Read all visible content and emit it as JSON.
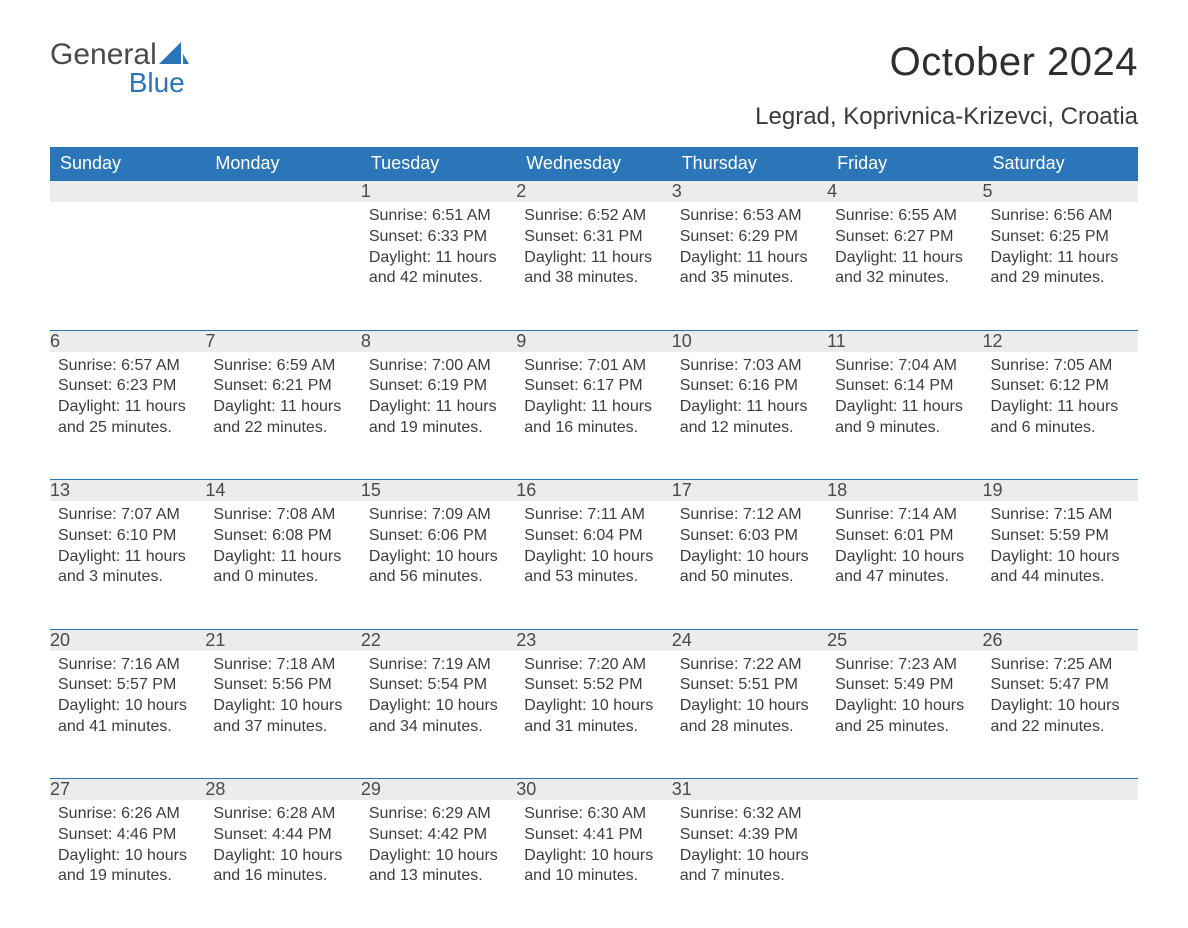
{
  "logo": {
    "line1": "General",
    "line2": "Blue",
    "sail_color": "#2b76b8"
  },
  "title": "October 2024",
  "location": "Legrad, Koprivnica-Krizevci, Croatia",
  "colors": {
    "header_bg": "#2b76b8",
    "header_text": "#ffffff",
    "daynum_bg": "#ececec",
    "daynum_border": "#2b76b8",
    "body_text": "#3d3d3d",
    "title_text": "#2f2f2f",
    "page_bg": "#ffffff"
  },
  "fonts": {
    "base_family": "Segoe UI",
    "title_size_pt": 30,
    "location_size_pt": 18,
    "header_size_pt": 13.5,
    "cell_size_pt": 12
  },
  "weekdays": [
    "Sunday",
    "Monday",
    "Tuesday",
    "Wednesday",
    "Thursday",
    "Friday",
    "Saturday"
  ],
  "labels": {
    "sunrise": "Sunrise",
    "sunset": "Sunset",
    "daylight": "Daylight"
  },
  "weeks": [
    [
      null,
      null,
      {
        "n": "1",
        "sunrise": "6:51 AM",
        "sunset": "6:33 PM",
        "daylight": "11 hours and 42 minutes."
      },
      {
        "n": "2",
        "sunrise": "6:52 AM",
        "sunset": "6:31 PM",
        "daylight": "11 hours and 38 minutes."
      },
      {
        "n": "3",
        "sunrise": "6:53 AM",
        "sunset": "6:29 PM",
        "daylight": "11 hours and 35 minutes."
      },
      {
        "n": "4",
        "sunrise": "6:55 AM",
        "sunset": "6:27 PM",
        "daylight": "11 hours and 32 minutes."
      },
      {
        "n": "5",
        "sunrise": "6:56 AM",
        "sunset": "6:25 PM",
        "daylight": "11 hours and 29 minutes."
      }
    ],
    [
      {
        "n": "6",
        "sunrise": "6:57 AM",
        "sunset": "6:23 PM",
        "daylight": "11 hours and 25 minutes."
      },
      {
        "n": "7",
        "sunrise": "6:59 AM",
        "sunset": "6:21 PM",
        "daylight": "11 hours and 22 minutes."
      },
      {
        "n": "8",
        "sunrise": "7:00 AM",
        "sunset": "6:19 PM",
        "daylight": "11 hours and 19 minutes."
      },
      {
        "n": "9",
        "sunrise": "7:01 AM",
        "sunset": "6:17 PM",
        "daylight": "11 hours and 16 minutes."
      },
      {
        "n": "10",
        "sunrise": "7:03 AM",
        "sunset": "6:16 PM",
        "daylight": "11 hours and 12 minutes."
      },
      {
        "n": "11",
        "sunrise": "7:04 AM",
        "sunset": "6:14 PM",
        "daylight": "11 hours and 9 minutes."
      },
      {
        "n": "12",
        "sunrise": "7:05 AM",
        "sunset": "6:12 PM",
        "daylight": "11 hours and 6 minutes."
      }
    ],
    [
      {
        "n": "13",
        "sunrise": "7:07 AM",
        "sunset": "6:10 PM",
        "daylight": "11 hours and 3 minutes."
      },
      {
        "n": "14",
        "sunrise": "7:08 AM",
        "sunset": "6:08 PM",
        "daylight": "11 hours and 0 minutes."
      },
      {
        "n": "15",
        "sunrise": "7:09 AM",
        "sunset": "6:06 PM",
        "daylight": "10 hours and 56 minutes."
      },
      {
        "n": "16",
        "sunrise": "7:11 AM",
        "sunset": "6:04 PM",
        "daylight": "10 hours and 53 minutes."
      },
      {
        "n": "17",
        "sunrise": "7:12 AM",
        "sunset": "6:03 PM",
        "daylight": "10 hours and 50 minutes."
      },
      {
        "n": "18",
        "sunrise": "7:14 AM",
        "sunset": "6:01 PM",
        "daylight": "10 hours and 47 minutes."
      },
      {
        "n": "19",
        "sunrise": "7:15 AM",
        "sunset": "5:59 PM",
        "daylight": "10 hours and 44 minutes."
      }
    ],
    [
      {
        "n": "20",
        "sunrise": "7:16 AM",
        "sunset": "5:57 PM",
        "daylight": "10 hours and 41 minutes."
      },
      {
        "n": "21",
        "sunrise": "7:18 AM",
        "sunset": "5:56 PM",
        "daylight": "10 hours and 37 minutes."
      },
      {
        "n": "22",
        "sunrise": "7:19 AM",
        "sunset": "5:54 PM",
        "daylight": "10 hours and 34 minutes."
      },
      {
        "n": "23",
        "sunrise": "7:20 AM",
        "sunset": "5:52 PM",
        "daylight": "10 hours and 31 minutes."
      },
      {
        "n": "24",
        "sunrise": "7:22 AM",
        "sunset": "5:51 PM",
        "daylight": "10 hours and 28 minutes."
      },
      {
        "n": "25",
        "sunrise": "7:23 AM",
        "sunset": "5:49 PM",
        "daylight": "10 hours and 25 minutes."
      },
      {
        "n": "26",
        "sunrise": "7:25 AM",
        "sunset": "5:47 PM",
        "daylight": "10 hours and 22 minutes."
      }
    ],
    [
      {
        "n": "27",
        "sunrise": "6:26 AM",
        "sunset": "4:46 PM",
        "daylight": "10 hours and 19 minutes."
      },
      {
        "n": "28",
        "sunrise": "6:28 AM",
        "sunset": "4:44 PM",
        "daylight": "10 hours and 16 minutes."
      },
      {
        "n": "29",
        "sunrise": "6:29 AM",
        "sunset": "4:42 PM",
        "daylight": "10 hours and 13 minutes."
      },
      {
        "n": "30",
        "sunrise": "6:30 AM",
        "sunset": "4:41 PM",
        "daylight": "10 hours and 10 minutes."
      },
      {
        "n": "31",
        "sunrise": "6:32 AM",
        "sunset": "4:39 PM",
        "daylight": "10 hours and 7 minutes."
      },
      null,
      null
    ]
  ]
}
